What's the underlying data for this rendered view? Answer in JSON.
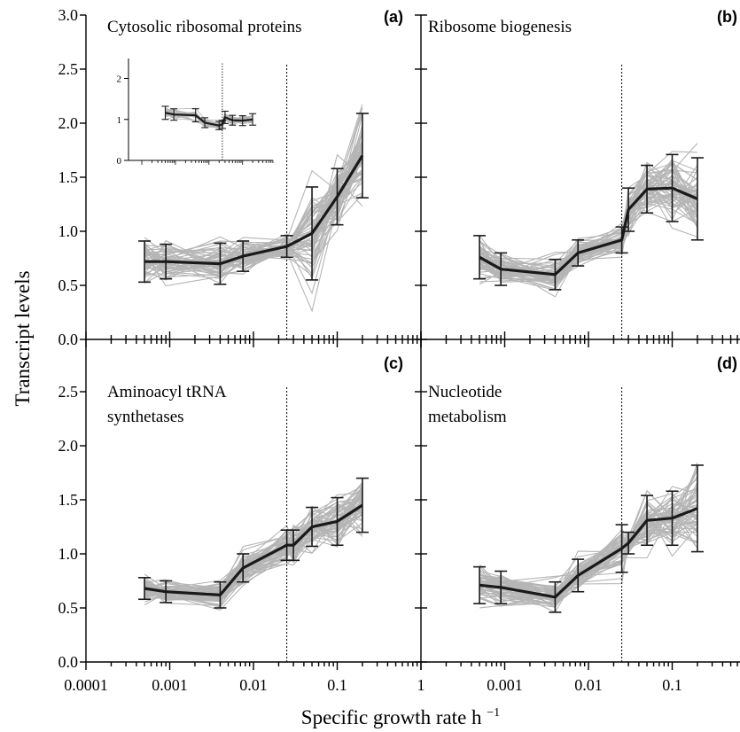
{
  "figure": {
    "ylabel": "Transcript levels",
    "xlabel_main": "Specific growth rate h",
    "xlabel_sup": "−1",
    "x_tick_labels": [
      "0.0001",
      "0.001",
      "0.01",
      "0.1",
      "1"
    ],
    "y_tick_labels_top": [
      "0.0",
      "0.5",
      "1.0",
      "1.5",
      "2.0",
      "2.5",
      "3.0"
    ],
    "y_tick_labels_bottom": [
      "0.0",
      "0.5",
      "1.0",
      "1.5",
      "2.0",
      "2.5"
    ],
    "inset_y_tick_labels": [
      "0",
      "1",
      "2"
    ]
  },
  "chart_data": [
    {
      "type": "line",
      "panel": "a",
      "letter": "(a)",
      "title": "Cytosolic ribosomal proteins",
      "xlabel": "Specific growth rate h−1",
      "ylabel": "Transcript levels",
      "xscale": "log",
      "xlim": [
        0.0001,
        1
      ],
      "ylim": [
        0,
        3
      ],
      "critical_growth_rate": 0.025,
      "series": [
        {
          "x": [
            0.0005,
            0.0009,
            0.004,
            0.0075,
            0.025,
            0.05,
            0.1,
            0.2
          ],
          "y": [
            0.72,
            0.72,
            0.7,
            0.77,
            0.86,
            0.98,
            1.32,
            1.7
          ],
          "err": [
            0.19,
            0.16,
            0.19,
            0.14,
            0.1,
            0.43,
            0.26,
            0.39
          ]
        }
      ],
      "gene_spread": 0.22,
      "inset": {
        "type": "line",
        "ylim": [
          0,
          2.4
        ],
        "y_ticks": [
          0,
          1,
          2
        ],
        "critical_growth_rate": 0.025,
        "x": [
          0.0005,
          0.0009,
          0.004,
          0.0075,
          0.02,
          0.025,
          0.03,
          0.05,
          0.1,
          0.2
        ],
        "y": [
          1.16,
          1.12,
          1.1,
          0.92,
          0.85,
          0.88,
          1.05,
          0.98,
          0.97,
          1.0
        ],
        "err": [
          0.16,
          0.14,
          0.16,
          0.12,
          0.1,
          0.1,
          0.15,
          0.12,
          0.12,
          0.14
        ]
      }
    },
    {
      "type": "line",
      "panel": "b",
      "letter": "(b)",
      "title": "Ribosome biogenesis",
      "xscale": "log",
      "xlim": [
        0.0001,
        1
      ],
      "ylim": [
        0,
        3
      ],
      "critical_growth_rate": 0.025,
      "series": [
        {
          "x": [
            0.0005,
            0.0009,
            0.004,
            0.0075,
            0.025,
            0.03,
            0.05,
            0.1,
            0.2
          ],
          "y": [
            0.76,
            0.65,
            0.6,
            0.8,
            0.92,
            1.2,
            1.39,
            1.4,
            1.3
          ],
          "err": [
            0.2,
            0.15,
            0.14,
            0.12,
            0.12,
            0.2,
            0.22,
            0.31,
            0.38
          ]
        }
      ],
      "gene_spread": 0.24
    },
    {
      "type": "line",
      "panel": "c",
      "letter": "(c)",
      "title": "Aminoacyl tRNA synthetases",
      "title_lines": [
        "Aminoacyl tRNA",
        "synthetases"
      ],
      "xscale": "log",
      "xlim": [
        0.0001,
        1
      ],
      "ylim": [
        0,
        3
      ],
      "critical_growth_rate": 0.025,
      "series": [
        {
          "x": [
            0.0005,
            0.0009,
            0.004,
            0.0075,
            0.025,
            0.03,
            0.05,
            0.1,
            0.2
          ],
          "y": [
            0.68,
            0.65,
            0.62,
            0.87,
            1.08,
            1.08,
            1.25,
            1.3,
            1.45
          ],
          "err": [
            0.1,
            0.1,
            0.12,
            0.13,
            0.14,
            0.14,
            0.18,
            0.22,
            0.25
          ]
        }
      ],
      "gene_spread": 0.12
    },
    {
      "type": "line",
      "panel": "d",
      "letter": "(d)",
      "title": "Nucleotide metabolism",
      "title_lines": [
        "Nucleotide",
        "metabolism"
      ],
      "xscale": "log",
      "xlim": [
        0.0001,
        1
      ],
      "ylim": [
        0,
        3
      ],
      "critical_growth_rate": 0.025,
      "series": [
        {
          "x": [
            0.0005,
            0.0009,
            0.004,
            0.0075,
            0.025,
            0.03,
            0.05,
            0.1,
            0.2
          ],
          "y": [
            0.71,
            0.69,
            0.6,
            0.8,
            1.05,
            1.1,
            1.31,
            1.33,
            1.42
          ],
          "err": [
            0.17,
            0.15,
            0.14,
            0.15,
            0.22,
            0.1,
            0.23,
            0.25,
            0.4
          ]
        }
      ],
      "gene_spread": 0.2
    }
  ]
}
